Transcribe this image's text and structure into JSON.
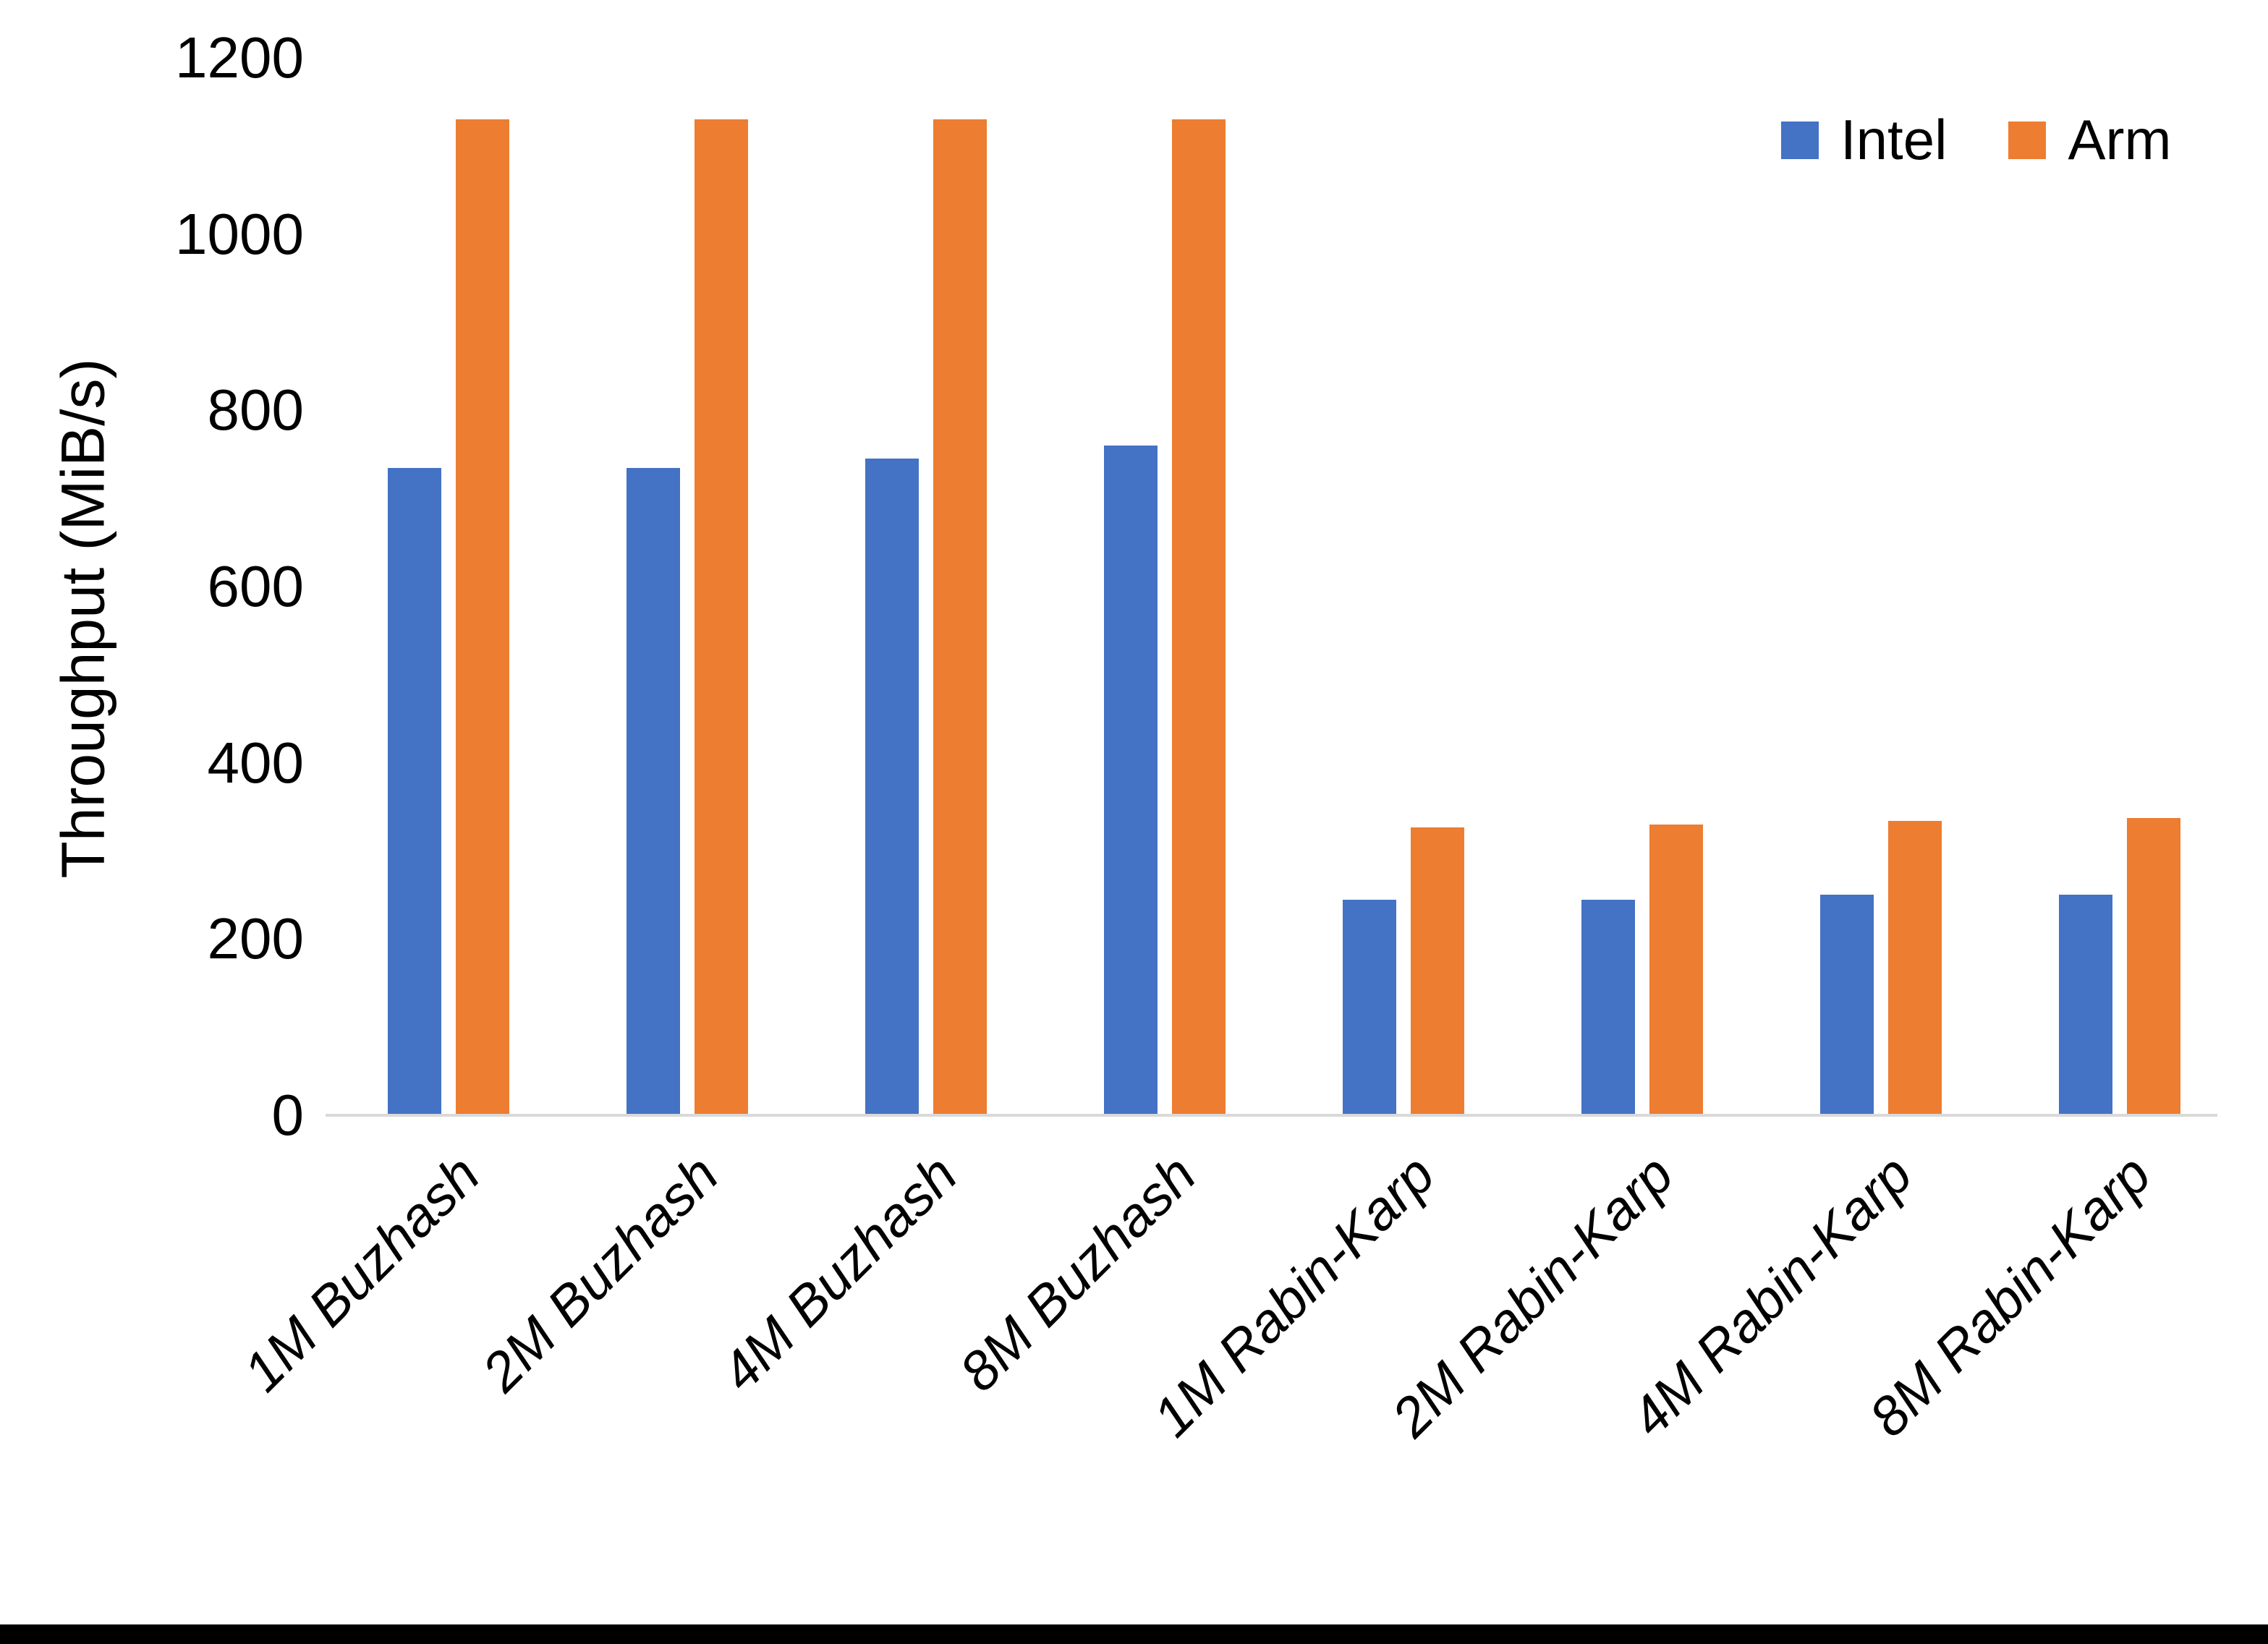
{
  "chart_data": {
    "type": "bar",
    "title": "",
    "xlabel": "",
    "ylabel": "Throughput (MiB/s)",
    "ylim": [
      0,
      1200
    ],
    "yticks": [
      0,
      200,
      400,
      600,
      800,
      1000,
      1200
    ],
    "grid": false,
    "legend_position": "top-right",
    "categories": [
      "1M Buzhash",
      "2M Buzhash",
      "4M Buzhash",
      "8M Buzhash",
      "1M Rabin-Karp",
      "2M Rabin-Karp",
      "4M Rabin-Karp",
      "8M Rabin-Karp"
    ],
    "series": [
      {
        "name": "Intel",
        "color": "#4472C4",
        "values": [
          735,
          735,
          745,
          760,
          245,
          245,
          250,
          250
        ]
      },
      {
        "name": "Arm",
        "color": "#ED7D31",
        "values": [
          1130,
          1130,
          1130,
          1130,
          327,
          330,
          334,
          337
        ]
      }
    ],
    "axis_line_color": "#D9D9D9",
    "bottom_border_color": "#000000"
  }
}
